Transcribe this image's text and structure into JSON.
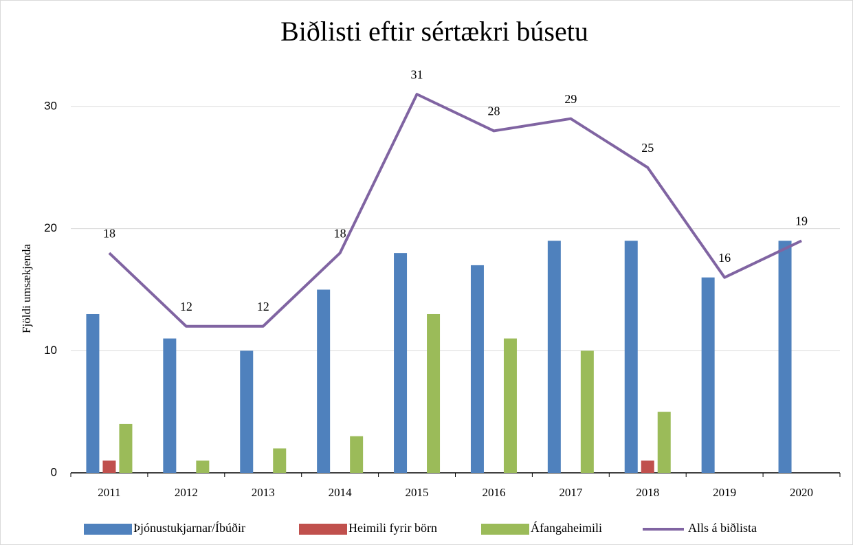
{
  "chart_data": {
    "type": "bar_line",
    "title": "Biðlisti eftir sértækri búsetu",
    "y_label": "Fjöldi umsækjenda",
    "categories": [
      "2011",
      "2012",
      "2013",
      "2014",
      "2015",
      "2016",
      "2017",
      "2018",
      "2019",
      "2020"
    ],
    "series": [
      {
        "name": "Þjónustukjarnar/Íbúðir",
        "type": "bar",
        "color": "#4f81bd",
        "values": [
          13,
          11,
          10,
          15,
          18,
          17,
          19,
          19,
          16,
          19
        ]
      },
      {
        "name": "Heimili fyrir börn",
        "type": "bar",
        "color": "#c0504d",
        "values": [
          1,
          0,
          0,
          0,
          0,
          0,
          0,
          1,
          0,
          0
        ]
      },
      {
        "name": "Áfangaheimili",
        "type": "bar",
        "color": "#9bbb59",
        "values": [
          4,
          1,
          2,
          3,
          13,
          11,
          10,
          5,
          0,
          0
        ]
      },
      {
        "name": "Alls á biðlista",
        "type": "line",
        "color": "#8064a2",
        "values": [
          18,
          12,
          12,
          18,
          31,
          28,
          29,
          25,
          16,
          19
        ]
      }
    ],
    "ylim": [
      0,
      35
    ],
    "yticks": [
      0,
      10,
      20,
      30
    ],
    "grid": true,
    "legend": "bottom"
  }
}
